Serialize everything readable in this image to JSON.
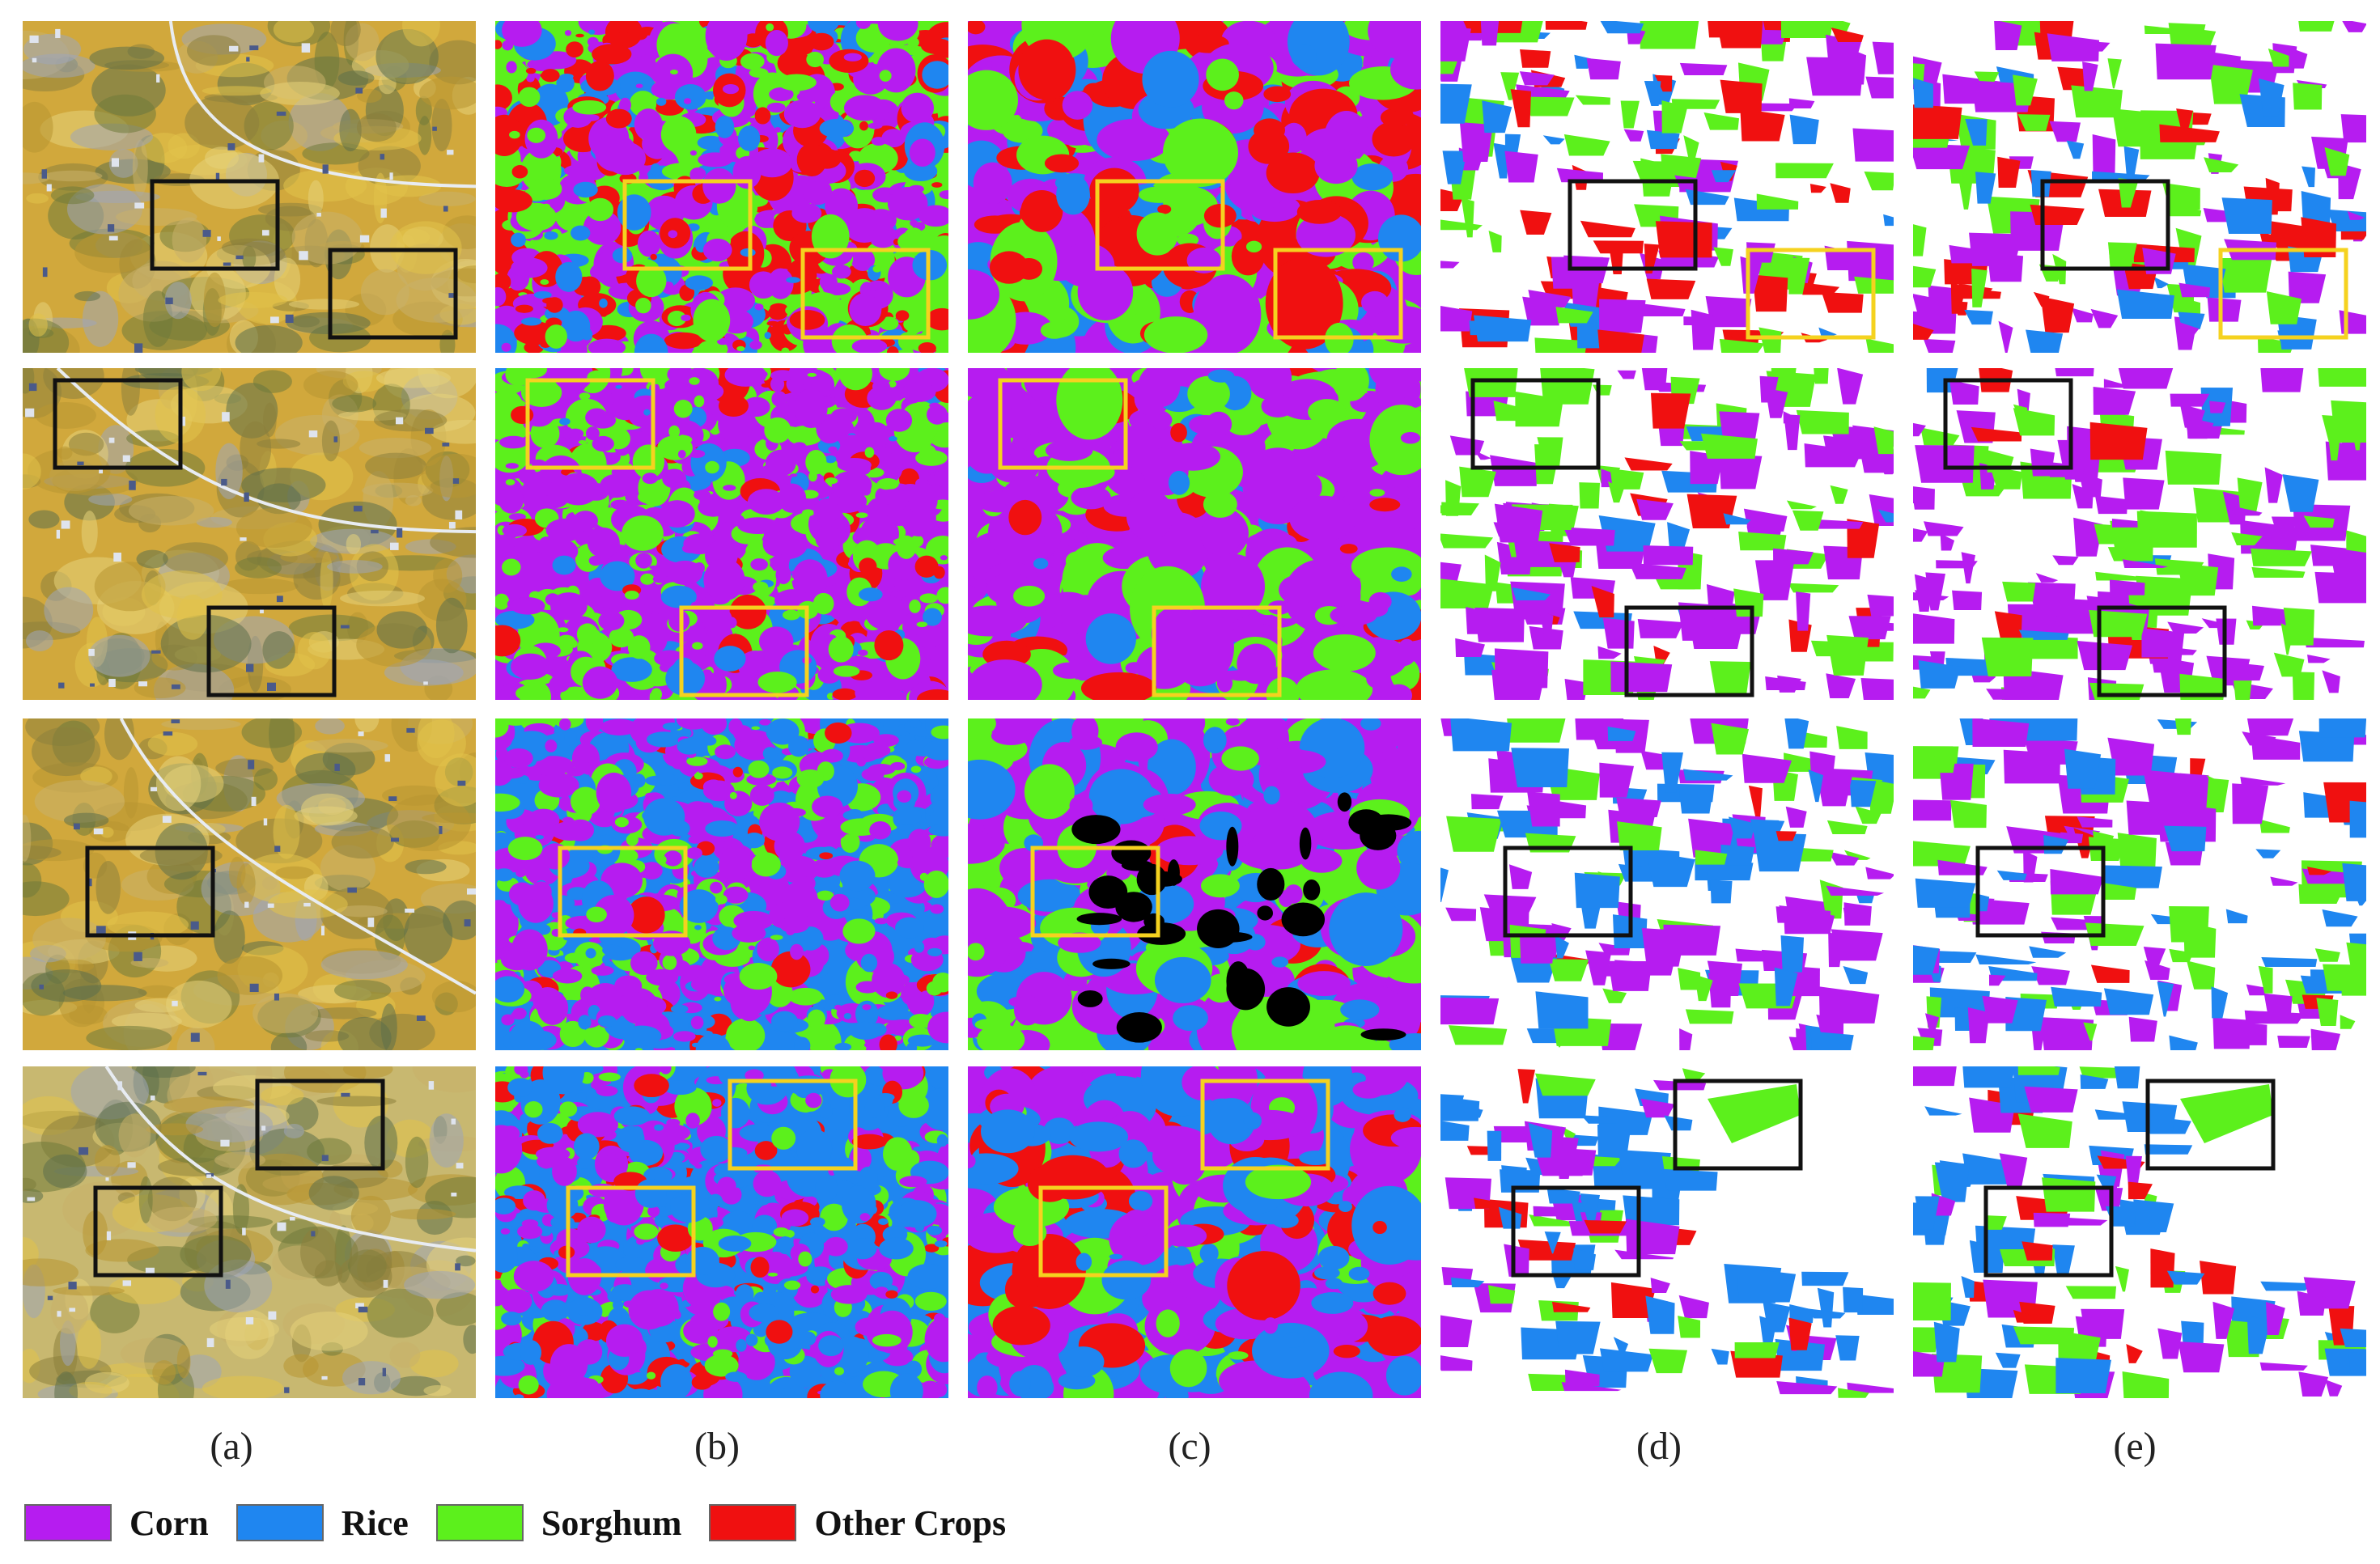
{
  "figure": {
    "column_labels": [
      "(a)",
      "(b)",
      "(c)",
      "(d)",
      "(e)"
    ],
    "legend": [
      {
        "label": "Corn",
        "color": "#b61cf0"
      },
      {
        "label": "Rice",
        "color": "#1f86f0"
      },
      {
        "label": "Sorghum",
        "color": "#5cf01c"
      },
      {
        "label": "Other Crops",
        "color": "#f01010"
      }
    ],
    "box_colors": {
      "highlight_yellow": "#f5d21f",
      "highlight_black": "#111111"
    },
    "panel_kinds": [
      "satellite-image",
      "classification-map",
      "classification-map",
      "crop-map",
      "crop-map"
    ]
  }
}
